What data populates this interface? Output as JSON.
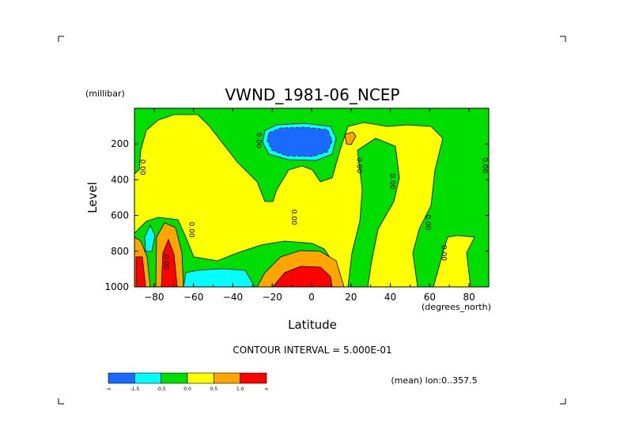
{
  "chart_data": {
    "type": "contour",
    "title": "VWND_1981-06_NCEP",
    "xlabel": "Latitude",
    "x_units": "(degrees_north)",
    "ylabel": "Level",
    "y_units": "(millibar)",
    "xlim": [
      -90,
      90
    ],
    "ylim": [
      1000,
      0
    ],
    "x_ticks": [
      -80,
      -60,
      -40,
      -20,
      0,
      20,
      40,
      60,
      80
    ],
    "y_ticks": [
      200,
      400,
      600,
      800,
      1000
    ],
    "contour_interval_text": "CONTOUR INTERVAL = 5.000E-01",
    "footer_text": "(mean) lon:0..357.5",
    "contour_labels": [
      {
        "text": "0.00",
        "x": -87,
        "y": 330
      },
      {
        "text": "0.00",
        "x": -75,
        "y": 860
      },
      {
        "text": "0.00",
        "x": -62,
        "y": 680
      },
      {
        "text": "0.00",
        "x": -28,
        "y": 180
      },
      {
        "text": "0.00",
        "x": -10,
        "y": 610
      },
      {
        "text": "0.00",
        "x": 23,
        "y": 320
      },
      {
        "text": "0.00",
        "x": 40,
        "y": 410
      },
      {
        "text": "0.00",
        "x": 58,
        "y": 640
      },
      {
        "text": "0.00",
        "x": 66,
        "y": 810
      },
      {
        "text": "0.00",
        "x": 87,
        "y": 320
      }
    ],
    "colorbar": {
      "levels": [
        -2.0,
        -1.5,
        -1.0,
        -0.5,
        0.0,
        0.5,
        1.0,
        1.5,
        2.0
      ],
      "tick_labels": [
        "-∞",
        "-1.5",
        "-0.5",
        "0.0",
        "0.5",
        "1.0",
        "∞"
      ],
      "colors": [
        "#1a6aff",
        "#00ffff",
        "#00dd00",
        "#ffff00",
        "#ffa500",
        "#ff0000"
      ]
    },
    "regions": [
      {
        "level": "negative_strong",
        "color": "#1a6aff",
        "x": [
          -20,
          5
        ],
        "y": [
          130,
          270
        ]
      },
      {
        "level": "negative_weak",
        "color": "#00ffff",
        "x": [
          -63,
          -30
        ],
        "y": [
          860,
          1000
        ]
      },
      {
        "level": "negative_weak",
        "color": "#00ffff",
        "x": [
          -85,
          -82
        ],
        "y": [
          640,
          720
        ]
      },
      {
        "level": "positive_strong",
        "color": "#ff0000",
        "x": [
          -90,
          -85
        ],
        "y": [
          810,
          1000
        ]
      },
      {
        "level": "positive_strong",
        "color": "#ff0000",
        "x": [
          -78,
          -72
        ],
        "y": [
          760,
          1000
        ]
      },
      {
        "level": "positive_strong",
        "color": "#ff0000",
        "x": [
          -12,
          8
        ],
        "y": [
          880,
          1000
        ]
      },
      {
        "level": "positive_mid",
        "color": "#ffa500",
        "x": [
          -25,
          15
        ],
        "y": [
          760,
          1000
        ]
      },
      {
        "level": "positive_mid",
        "color": "#ffa500",
        "x": [
          17,
          22
        ],
        "y": [
          130,
          190
        ]
      }
    ]
  }
}
